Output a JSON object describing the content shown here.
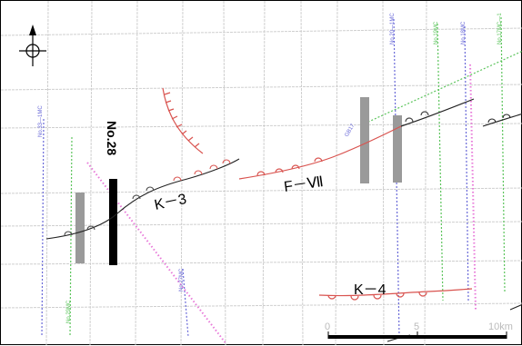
{
  "map": {
    "labels": {
      "line_no28": "No.28",
      "fault_k3": "K－3",
      "fault_fvii": "F－Ⅶ",
      "fault_k4": "K－4"
    },
    "scale_bar": {
      "tick_0": "0",
      "tick_5": "5",
      "tick_10": "10km"
    },
    "line_tags": {
      "left_blue": "No.33—1MC",
      "left_green": "No.29MC",
      "mid_blue": "No.27MC",
      "right_blue_1": "No.20—1MC",
      "right_green_1": "No.19MC",
      "right_blue_2": "No.18MC",
      "right_green_2": "No.17MC—1",
      "small_tag": "GB17"
    },
    "colors": {
      "fault_red": "#d9534f",
      "fault_black": "#222222",
      "survey_pink": "#e879d9",
      "survey_blue": "#6a6ad8",
      "survey_green": "#5cc45c",
      "grey_bar": "#9a9a9a",
      "grid": "#c8c8c8",
      "profile_line": "#000000"
    },
    "icons": {
      "north_arrow": "north-arrow-crosshair-icon"
    }
  }
}
